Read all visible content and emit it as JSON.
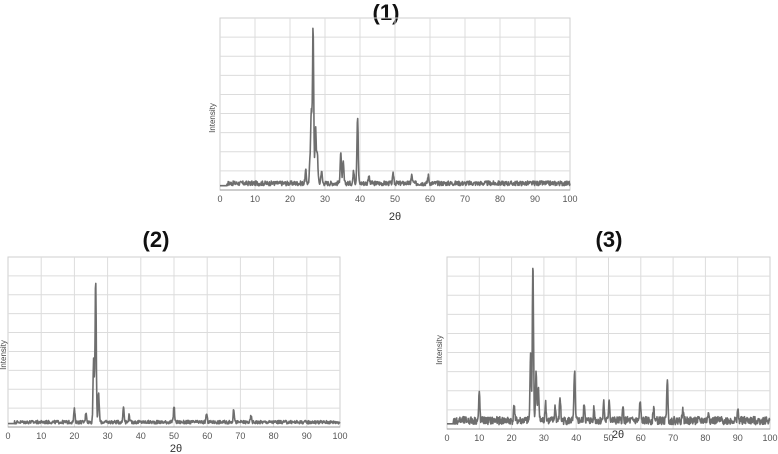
{
  "chart_data": [
    {
      "type": "line",
      "title": "(1)",
      "xlabel": "2θ",
      "ylabel": "Intensity",
      "xlim": [
        0,
        100
      ],
      "xticks": [
        0,
        10,
        20,
        30,
        40,
        50,
        60,
        70,
        80,
        90,
        100
      ],
      "grid": true,
      "color": "#6e6e6e",
      "background_level": 0.03,
      "noise": 0.015,
      "peaks": [
        {
          "x": 24.5,
          "y": 0.08
        },
        {
          "x": 25.7,
          "y": 0.12
        },
        {
          "x": 26.1,
          "y": 0.45
        },
        {
          "x": 26.6,
          "y": 1.0
        },
        {
          "x": 27.3,
          "y": 0.35
        },
        {
          "x": 27.8,
          "y": 0.2
        },
        {
          "x": 29.0,
          "y": 0.08
        },
        {
          "x": 34.5,
          "y": 0.2
        },
        {
          "x": 35.2,
          "y": 0.13
        },
        {
          "x": 38.2,
          "y": 0.08
        },
        {
          "x": 39.3,
          "y": 0.43
        },
        {
          "x": 42.5,
          "y": 0.05
        },
        {
          "x": 49.5,
          "y": 0.06
        },
        {
          "x": 54.8,
          "y": 0.05
        },
        {
          "x": 59.5,
          "y": 0.05
        }
      ]
    },
    {
      "type": "line",
      "title": "(2)",
      "xlabel": "2θ",
      "ylabel": "Intensity",
      "xlim": [
        0,
        100
      ],
      "xticks": [
        0,
        10,
        20,
        30,
        40,
        50,
        60,
        70,
        80,
        90,
        100
      ],
      "grid": true,
      "color": "#6e6e6e",
      "background_level": 0.02,
      "noise": 0.012,
      "peaks": [
        {
          "x": 20.0,
          "y": 0.09
        },
        {
          "x": 23.5,
          "y": 0.07
        },
        {
          "x": 25.8,
          "y": 0.45
        },
        {
          "x": 26.4,
          "y": 1.0
        },
        {
          "x": 27.3,
          "y": 0.2
        },
        {
          "x": 34.8,
          "y": 0.11
        },
        {
          "x": 36.5,
          "y": 0.05
        },
        {
          "x": 50.0,
          "y": 0.11
        },
        {
          "x": 59.8,
          "y": 0.06
        },
        {
          "x": 68.0,
          "y": 0.09
        },
        {
          "x": 73.2,
          "y": 0.04
        }
      ]
    },
    {
      "type": "line",
      "title": "(3)",
      "xlabel": "2θ",
      "ylabel": "Intensity",
      "xlim": [
        0,
        100
      ],
      "xticks": [
        0,
        10,
        20,
        30,
        40,
        50,
        60,
        70,
        80,
        90,
        100
      ],
      "grid": true,
      "color": "#6e6e6e",
      "background_level": 0.04,
      "noise": 0.025,
      "peaks": [
        {
          "x": 10.0,
          "y": 0.17
        },
        {
          "x": 20.8,
          "y": 0.1
        },
        {
          "x": 25.9,
          "y": 0.45
        },
        {
          "x": 26.6,
          "y": 1.0
        },
        {
          "x": 27.6,
          "y": 0.3
        },
        {
          "x": 28.3,
          "y": 0.22
        },
        {
          "x": 30.5,
          "y": 0.12
        },
        {
          "x": 33.5,
          "y": 0.09
        },
        {
          "x": 35.0,
          "y": 0.15
        },
        {
          "x": 39.5,
          "y": 0.32
        },
        {
          "x": 42.5,
          "y": 0.11
        },
        {
          "x": 45.5,
          "y": 0.08
        },
        {
          "x": 48.5,
          "y": 0.12
        },
        {
          "x": 50.2,
          "y": 0.14
        },
        {
          "x": 54.5,
          "y": 0.08
        },
        {
          "x": 59.8,
          "y": 0.12
        },
        {
          "x": 64.0,
          "y": 0.08
        },
        {
          "x": 68.2,
          "y": 0.27
        },
        {
          "x": 73.0,
          "y": 0.07
        },
        {
          "x": 81.0,
          "y": 0.06
        },
        {
          "x": 90.0,
          "y": 0.07
        }
      ]
    }
  ]
}
